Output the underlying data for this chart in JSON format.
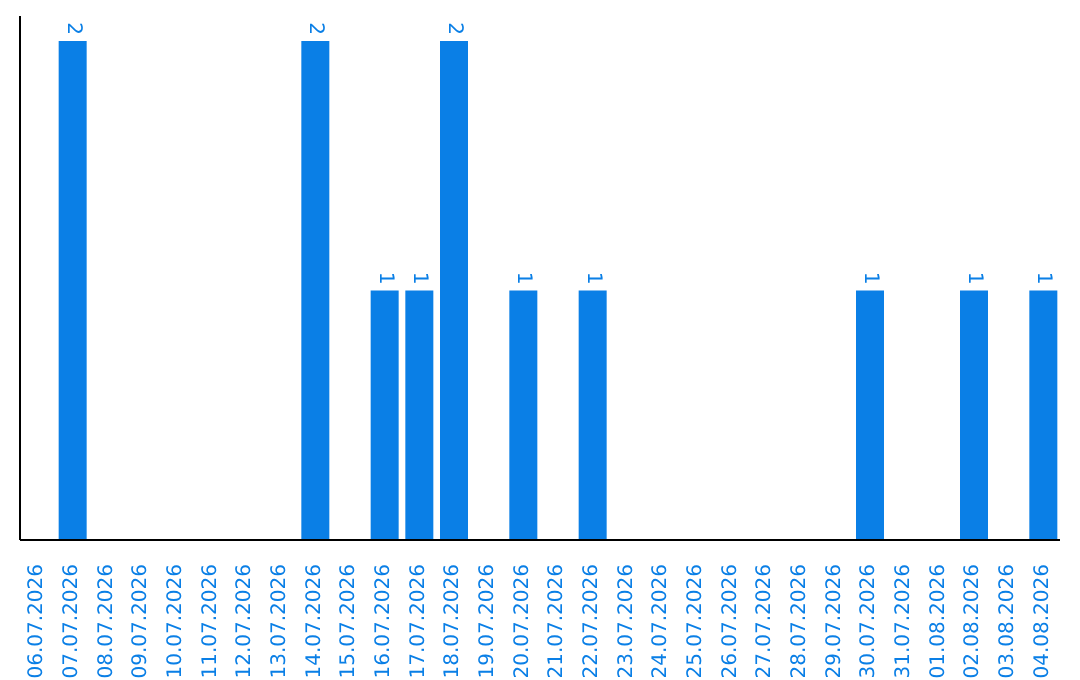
{
  "chart_data": {
    "type": "bar",
    "categories": [
      "06.07.2026",
      "07.07.2026",
      "08.07.2026",
      "09.07.2026",
      "10.07.2026",
      "11.07.2026",
      "12.07.2026",
      "13.07.2026",
      "14.07.2026",
      "15.07.2026",
      "16.07.2026",
      "17.07.2026",
      "18.07.2026",
      "19.07.2026",
      "20.07.2026",
      "21.07.2026",
      "22.07.2026",
      "23.07.2026",
      "24.07.2026",
      "25.07.2026",
      "26.07.2026",
      "27.07.2026",
      "28.07.2026",
      "29.07.2026",
      "30.07.2026",
      "31.07.2026",
      "01.08.2026",
      "02.08.2026",
      "03.08.2026",
      "04.08.2026"
    ],
    "values": [
      null,
      2,
      null,
      null,
      null,
      null,
      null,
      null,
      2,
      null,
      1,
      1,
      2,
      null,
      1,
      null,
      1,
      null,
      null,
      null,
      null,
      null,
      null,
      null,
      1,
      null,
      null,
      1,
      null,
      1
    ],
    "data_labels": true,
    "color": "#0a7fe6",
    "tick_labels": "x"
  }
}
